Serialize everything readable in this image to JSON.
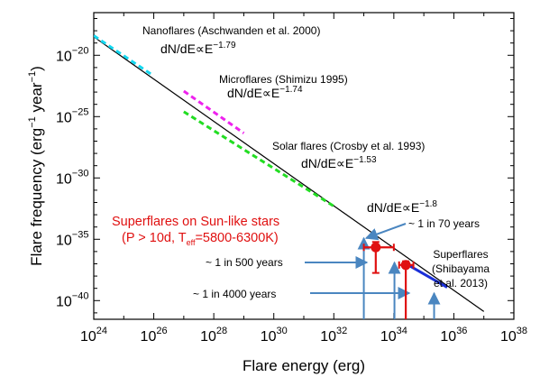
{
  "chart_data": {
    "type": "line",
    "xlabel": "Flare energy (erg)",
    "ylabel": "Flare frequency (erg-1 year-1)",
    "x_scale": "log",
    "y_scale": "log",
    "xlim": [
      1e+24,
      1e+38
    ],
    "ylim": [
      3e-42,
      3e-17
    ],
    "x_ticks": [
      {
        "value": 1e+24,
        "base": "10",
        "exp": "24"
      },
      {
        "value": 1e+26,
        "base": "10",
        "exp": "26"
      },
      {
        "value": 1e+28,
        "base": "10",
        "exp": "28"
      },
      {
        "value": 1e+30,
        "base": "10",
        "exp": "30"
      },
      {
        "value": 1e+32,
        "base": "10",
        "exp": "32"
      },
      {
        "value": 1e+34,
        "base": "10",
        "exp": "34"
      },
      {
        "value": 1e+36,
        "base": "10",
        "exp": "36"
      },
      {
        "value": 1e+38,
        "base": "10",
        "exp": "38"
      }
    ],
    "y_ticks": [
      {
        "value": 1e-20,
        "base": "10",
        "exp": "−20"
      },
      {
        "value": 1e-25,
        "base": "10",
        "exp": "−25"
      },
      {
        "value": 1e-30,
        "base": "10",
        "exp": "−30"
      },
      {
        "value": 1e-35,
        "base": "10",
        "exp": "−35"
      },
      {
        "value": 1e-40,
        "base": "10",
        "exp": "−40"
      }
    ],
    "ylabel_parts": {
      "main": "Flare frequency (erg",
      "exp1": "−1",
      "mid": " year",
      "exp2": "−1",
      "end": ")"
    },
    "grid": false,
    "series": [
      {
        "color": "#000000",
        "style": "solid",
        "x": [
          1e+24,
          1e+37
        ],
        "y": [
          3.2e-19,
          1.3e-41
        ]
      },
      {
        "color": "#14d8f0",
        "style": "dashed",
        "x": [
          1e+24,
          8e+25
        ],
        "y": [
          4e-19,
          3e-22
        ]
      },
      {
        "color": "#ee22ee",
        "style": "dashed",
        "x": [
          1e+27,
          1e+29
        ],
        "y": [
          1.2e-23,
          4.5e-27
        ]
      },
      {
        "color": "#22dd22",
        "style": "dashed",
        "x": [
          1e+27,
          1e+32
        ],
        "y": [
          2.5e-25,
          5e-33
        ]
      },
      {
        "color": "#1a2fd8",
        "style": "solid",
        "x": [
          3e+34,
          6e+35
        ],
        "y": [
          8e-38,
          1.2e-39
        ]
      }
    ],
    "points": [
      {
        "x": 2.5e+33,
        "y": 2.2e-36,
        "x_err": [
          1e+33,
          1e+34
        ],
        "y_err": [
          1.8e-38,
          6e-36
        ],
        "color": "#e01010"
      },
      {
        "x": 2.5e+34,
        "y": 8e-38,
        "x_err": [
          1.5e+34,
          4.5e+34
        ],
        "y_err": [
          5e-43,
          1.6e-37
        ],
        "color": "#e01010"
      }
    ],
    "annotations": {
      "nanoflares": {
        "title": "Nanoflares (Aschwanden et al. 2000)",
        "law": "dN/dE∝E",
        "exp": "−1.79"
      },
      "microflares": {
        "title": "Microflares (Shimizu 1995)",
        "law": "dN/dE∝E",
        "exp": "−1.74"
      },
      "solar": {
        "title": "Solar flares (Crosby et al. 1993)",
        "law": "dN/dE∝E",
        "exp": "−1.53"
      },
      "fit": {
        "law": "dN/dE∝E",
        "exp": "−1.8"
      },
      "superflares_sunlike_line1": "Superflares on Sun-like stars",
      "superflares_sunlike_line2": {
        "pre": "(P > 10d, T",
        "sub": "eff",
        "post": "=5800-6300K)"
      },
      "superflares_label": [
        "Superflares",
        "(Shibayama",
        "et al. 2013)"
      ],
      "rate_70": "~ 1 in 70 years",
      "rate_500": "~ 1 in 500 years",
      "rate_4000": "~ 1 in 4000 years"
    },
    "colors": {
      "arrow": "#4a86c0",
      "highlight": "#e01010",
      "axis": "#000000"
    }
  }
}
